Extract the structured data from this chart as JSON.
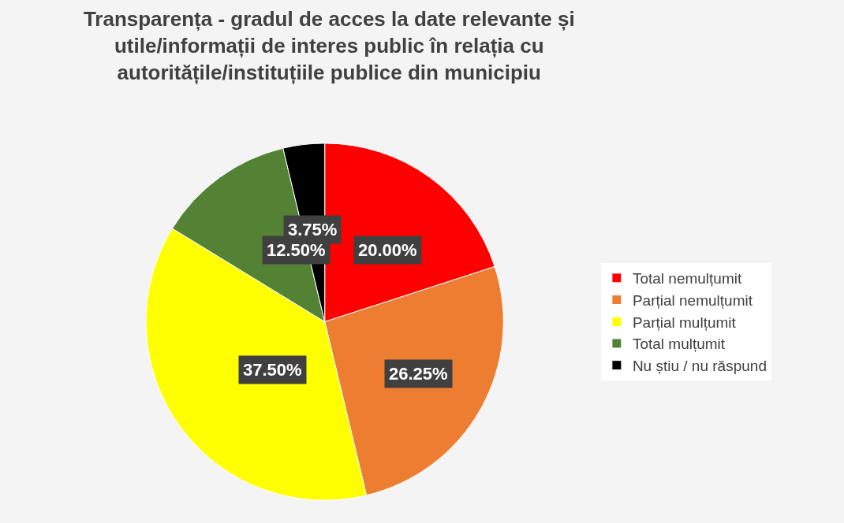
{
  "chart_data": {
    "type": "pie",
    "title": "Transparența - gradul de acces la date relevante și utile/informații de interes public în relația cu autoritățile/instituțiile publice din municipiu",
    "categories": [
      "Total nemulțumit",
      "Parțial nemulțumit",
      "Parțial mulțumit",
      "Total mulțumit",
      "Nu știu / nu răspund"
    ],
    "values": [
      20,
      26.25,
      37.5,
      12.5,
      3.75
    ],
    "value_labels": [
      "20.00%",
      "26.25%",
      "37.50%",
      "12.50%",
      "3.75%"
    ],
    "colors": [
      "#ff0000",
      "#ed7d31",
      "#ffff00",
      "#548235",
      "#000000"
    ],
    "legend": "right"
  }
}
